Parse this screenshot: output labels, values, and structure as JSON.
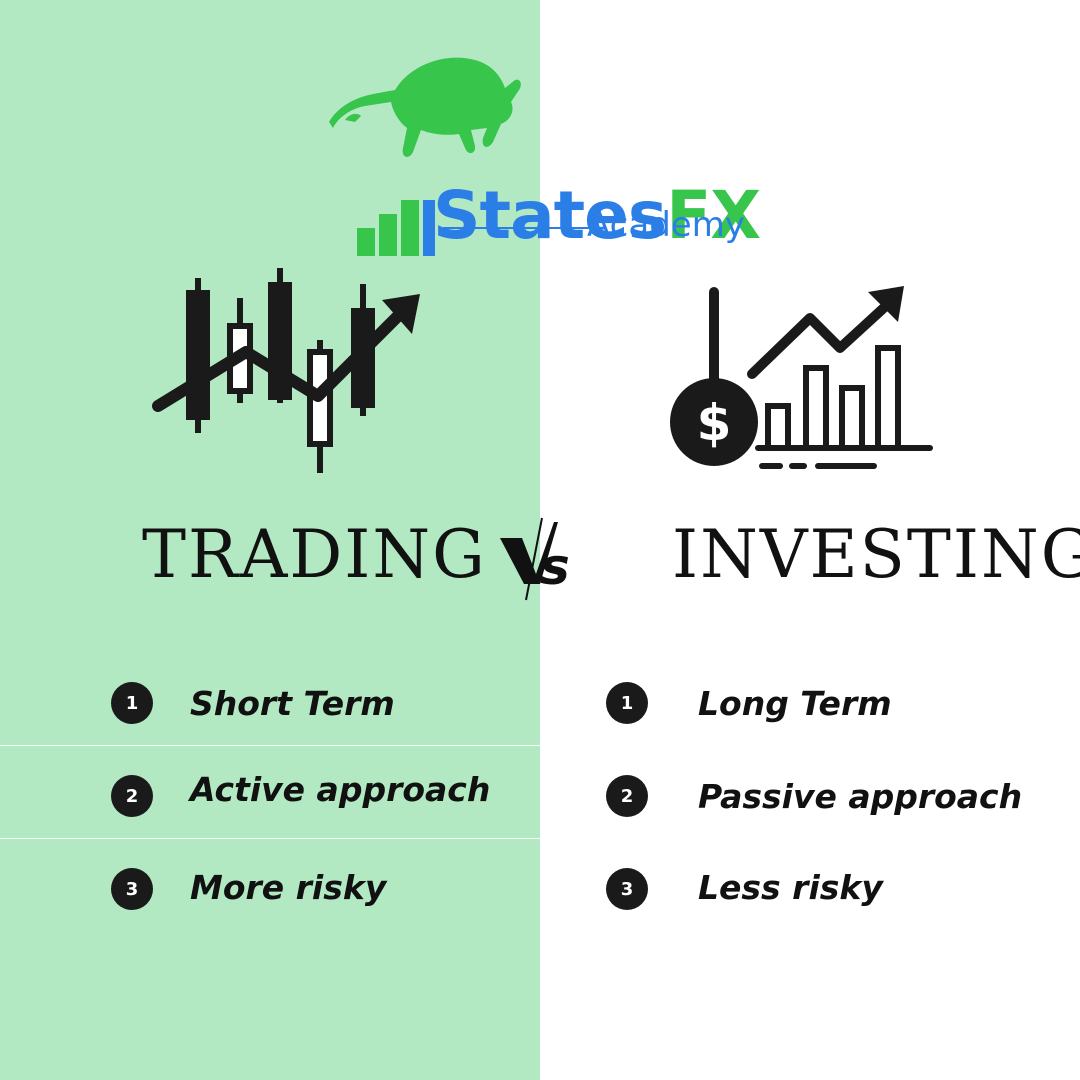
{
  "brand": {
    "name_part1": "States",
    "name_part2": "FX",
    "subtitle": "Academy",
    "colors": {
      "blue": "#2a7ee6",
      "green": "#37c54c"
    },
    "icon": "bull-logo"
  },
  "left": {
    "title": "TRADING",
    "icon": "candlestick-chart-icon",
    "background": "#b2e9c3",
    "items": [
      {
        "number": "1",
        "label": "Short Term"
      },
      {
        "number": "2",
        "label": "Active approach"
      },
      {
        "number": "3",
        "label": "More risky"
      }
    ]
  },
  "vs": {
    "text": "VS"
  },
  "right": {
    "title": "INVESTING",
    "icon": "investment-growth-icon",
    "background": "#ffffff",
    "items": [
      {
        "number": "1",
        "label": "Long Term"
      },
      {
        "number": "2",
        "label": "Passive approach"
      },
      {
        "number": "3",
        "label": "Less risky"
      }
    ]
  }
}
